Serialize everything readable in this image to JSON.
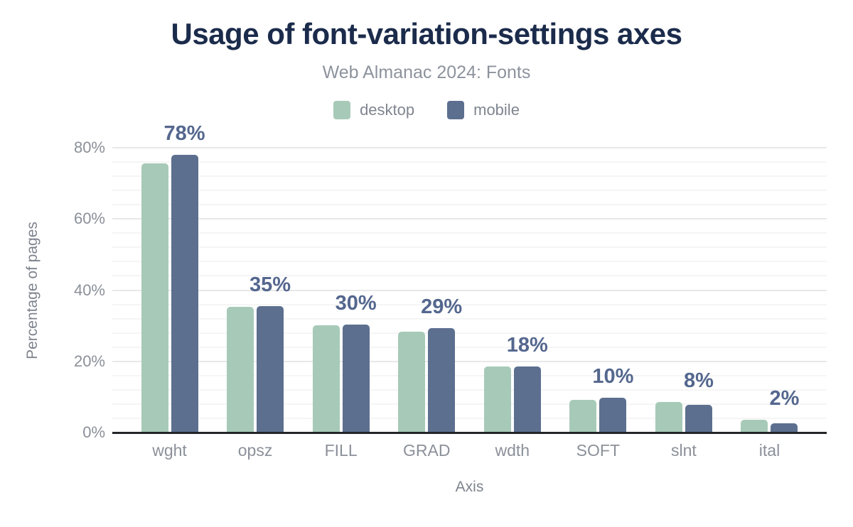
{
  "palette": {
    "desktop_bar": "#a7cab8",
    "mobile_bar": "#5c6f8f",
    "value_label": "#54678e",
    "title_text": "#1b2b4b",
    "muted_text": "#8b9099",
    "axis_line": "#232527",
    "grid_major": "#e8e8e8",
    "grid_minor": "#f5f5f5"
  },
  "chart_data": {
    "type": "bar",
    "title": "Usage of font-variation-settings axes",
    "subtitle": "Web Almanac 2024: Fonts",
    "xlabel": "Axis",
    "ylabel": "Percentage of pages",
    "ylim": [
      0,
      80
    ],
    "grid": {
      "major_step": 20,
      "minor_step": 4,
      "visible": true
    },
    "legend_position": "top",
    "categories": [
      "wght",
      "opsz",
      "FILL",
      "GRAD",
      "wdth",
      "SOFT",
      "slnt",
      "ital"
    ],
    "series": [
      {
        "name": "desktop",
        "color": "#a7cab8",
        "values": [
          75.4,
          35.2,
          29.9,
          28.1,
          18.3,
          9.0,
          8.4,
          3.3
        ]
      },
      {
        "name": "mobile",
        "color": "#5c6f8f",
        "values": [
          77.9,
          35.3,
          30.2,
          29.1,
          18.4,
          9.6,
          7.6,
          2.4
        ]
      }
    ],
    "bar_labels": [
      "78%",
      "35%",
      "30%",
      "29%",
      "18%",
      "10%",
      "8%",
      "2%"
    ],
    "yticks": [
      {
        "label": "0%",
        "value": 0
      },
      {
        "label": "20%",
        "value": 20
      },
      {
        "label": "40%",
        "value": 40
      },
      {
        "label": "60%",
        "value": 60
      },
      {
        "label": "80%",
        "value": 80
      }
    ]
  }
}
